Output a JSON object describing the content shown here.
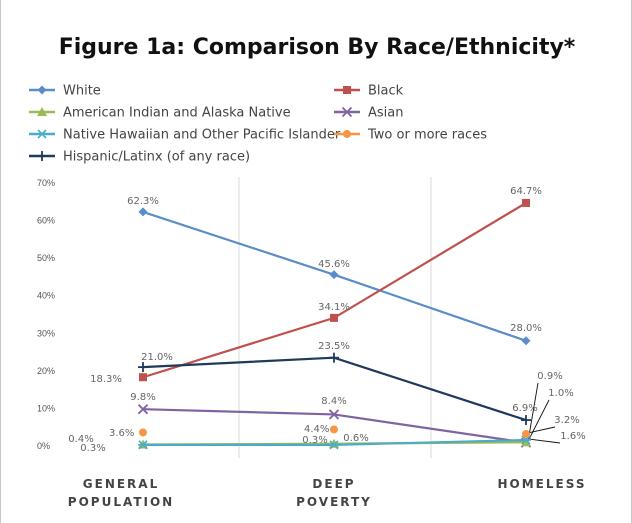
{
  "chart_data": {
    "type": "line",
    "title": "Figure 1a: Comparison By Race/Ethnicity*",
    "categories": [
      [
        "GENERAL",
        "POPULATION"
      ],
      [
        "DEEP",
        "POVERTY"
      ],
      [
        "HOMELESS"
      ]
    ],
    "y_ticks": [
      "0%",
      "10%",
      "20%",
      "30%",
      "40%",
      "50%",
      "60%",
      "70%"
    ],
    "ylim": [
      0,
      70
    ],
    "grid": "vertical",
    "legend_position": "top",
    "series": [
      {
        "name": "White",
        "color": "#5b8dc8",
        "marker": "diamond",
        "values": [
          62.3,
          45.6,
          28.0
        ],
        "labels": [
          "62.3%",
          "45.6%",
          "28.0%"
        ]
      },
      {
        "name": "Black",
        "color": "#c0504d",
        "marker": "square",
        "values": [
          18.3,
          34.1,
          64.7
        ],
        "labels": [
          "18.3%",
          "34.1%",
          "64.7%"
        ]
      },
      {
        "name": "American Indian and Alaska Native",
        "color": "#9bbb59",
        "marker": "triangle",
        "values": [
          0.4,
          0.6,
          1.0
        ],
        "labels": [
          "0.4%",
          "0.6%",
          "1.0%"
        ]
      },
      {
        "name": "Asian",
        "color": "#8064a2",
        "marker": "x",
        "values": [
          9.8,
          8.4,
          0.9
        ],
        "labels": [
          "9.8%",
          "8.4%",
          "0.9%"
        ]
      },
      {
        "name": "Native Hawaiian and Other Pacific Islander",
        "color": "#4bacc6",
        "marker": "asterisk",
        "values": [
          0.3,
          0.3,
          1.6
        ],
        "labels": [
          "0.3%",
          "0.3%",
          "1.6%"
        ]
      },
      {
        "name": "Two or more races",
        "color": "#f79646",
        "marker": "circle",
        "values": [
          3.6,
          4.4,
          3.2
        ],
        "labels": [
          "3.6%",
          "4.4%",
          "3.2%"
        ],
        "line": false
      },
      {
        "name": "Hispanic/Latinx (of any race)",
        "color": "#1f3a5a",
        "marker": "plus",
        "values": [
          21.0,
          23.5,
          6.9
        ],
        "labels": [
          "21.0%",
          "23.5%",
          "6.9%"
        ]
      }
    ]
  }
}
